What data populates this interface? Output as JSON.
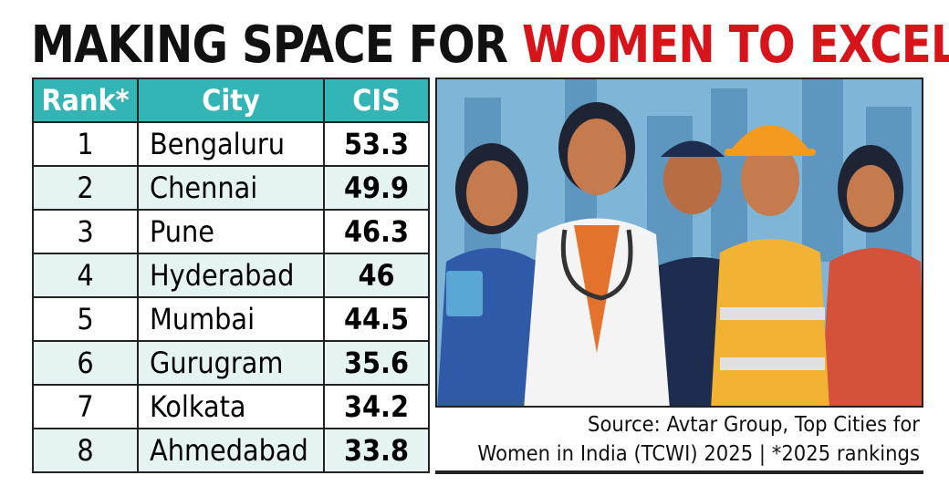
{
  "title": {
    "part1": "MAKING SPACE FOR ",
    "part2": "WOMEN TO EXCEL"
  },
  "colors": {
    "header": "#33b5b5",
    "accent": "#d8141b",
    "alt_row": "#e5f3f3"
  },
  "chart_data": {
    "type": "table",
    "columns": [
      "Rank*",
      "City",
      "CIS"
    ],
    "rows": [
      {
        "rank": "1",
        "city": "Bengaluru",
        "cis": "53.3"
      },
      {
        "rank": "2",
        "city": "Chennai",
        "cis": "49.9"
      },
      {
        "rank": "3",
        "city": "Pune",
        "cis": "46.3"
      },
      {
        "rank": "4",
        "city": "Hyderabad",
        "cis": "46"
      },
      {
        "rank": "5",
        "city": "Mumbai",
        "cis": "44.5"
      },
      {
        "rank": "6",
        "city": "Gurugram",
        "cis": "35.6"
      },
      {
        "rank": "7",
        "city": "Kolkata",
        "cis": "34.2"
      },
      {
        "rank": "8",
        "city": "Ahmedabad",
        "cis": "33.8"
      }
    ]
  },
  "source": {
    "line1": "Source: Avtar Group, Top Cities for",
    "line2": "Women in India (TCWI) 2025  |  *2025 rankings"
  }
}
